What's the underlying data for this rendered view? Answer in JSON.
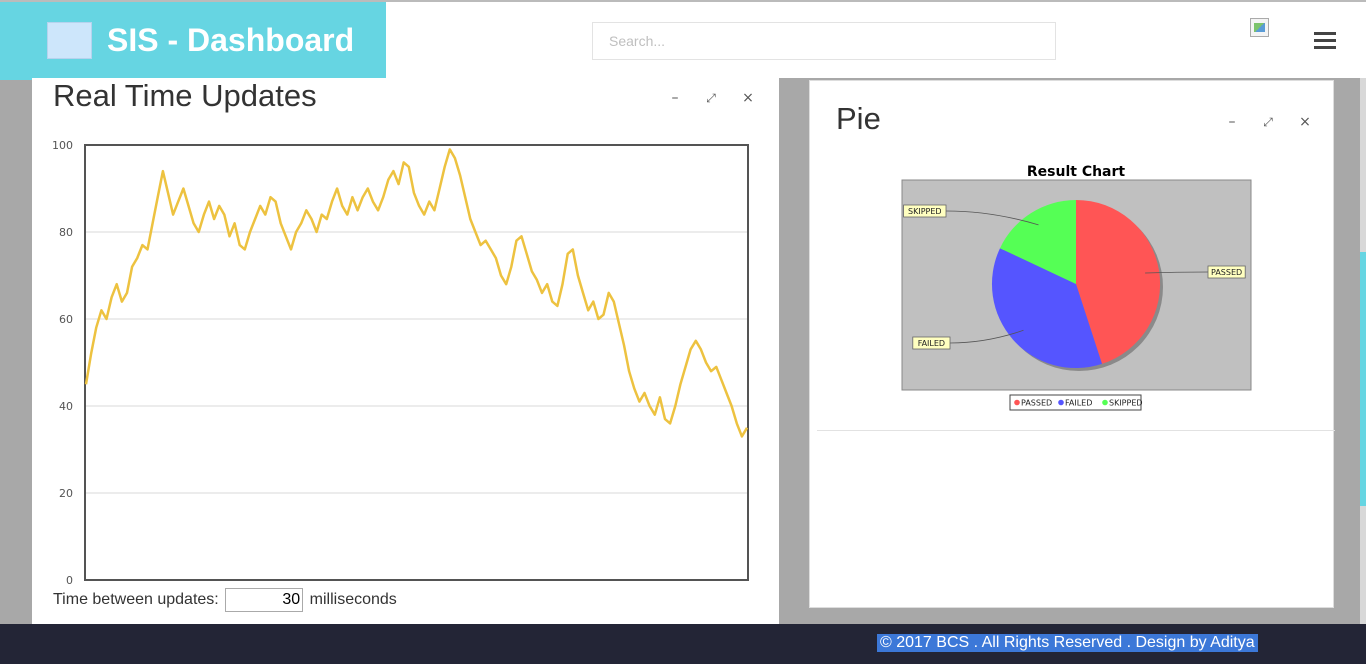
{
  "header": {
    "title": "SIS - Dashboard",
    "search_placeholder": "Search...",
    "brand_color": "#66d5e2",
    "menu_icon": "hamburger-icon"
  },
  "realtime_panel": {
    "title": "Real Time Updates",
    "controls": [
      "minimize-icon",
      "expand-icon",
      "close-icon"
    ],
    "updates_label": "Time between updates:",
    "updates_value": "30",
    "updates_unit": "milliseconds"
  },
  "pie_panel": {
    "title": "Pie",
    "controls": [
      "minimize-icon",
      "expand-icon",
      "close-icon"
    ]
  },
  "footer": {
    "text": "© 2017 BCS . All Rights Reserved . Design by Aditya"
  },
  "chart_data": [
    {
      "type": "line",
      "title": "",
      "xlabel": "",
      "ylabel": "",
      "ylim": [
        0,
        100
      ],
      "yticks": [
        "100",
        "80",
        "60",
        "40",
        "20",
        "0"
      ],
      "grid": true,
      "line_color": "#edc240",
      "series": [
        {
          "values": [
            45,
            52,
            58,
            62,
            60,
            65,
            68,
            64,
            66,
            72,
            74,
            77,
            76,
            82,
            88,
            94,
            89,
            84,
            87,
            90,
            86,
            82,
            80,
            84,
            87,
            83,
            86,
            84,
            79,
            82,
            77,
            76,
            80,
            83,
            86,
            84,
            88,
            87,
            82,
            79,
            76,
            80,
            82,
            85,
            83,
            80,
            84,
            83,
            87,
            90,
            86,
            84,
            88,
            85,
            88,
            90,
            87,
            85,
            88,
            92,
            94,
            91,
            96,
            95,
            89,
            86,
            84,
            87,
            85,
            90,
            95,
            99,
            97,
            93,
            88,
            83,
            80,
            77,
            78,
            76,
            74,
            70,
            68,
            72,
            78,
            79,
            75,
            71,
            69,
            66,
            68,
            64,
            63,
            68,
            75,
            76,
            70,
            66,
            62,
            64,
            60,
            61,
            66,
            64,
            59,
            54,
            48,
            44,
            41,
            43,
            40,
            38,
            42,
            37,
            36,
            40,
            45,
            49,
            53,
            55,
            53,
            50,
            48,
            49,
            46,
            43,
            40,
            36,
            33,
            35
          ]
        }
      ]
    },
    {
      "type": "pie",
      "title": "Result Chart",
      "legend_position": "bottom",
      "background": "#c0c0c0",
      "series": [
        {
          "labels": [
            "PASSED",
            "FAILED",
            "SKIPPED"
          ],
          "values": [
            45,
            37,
            18
          ],
          "colors": [
            "#ff5555",
            "#5555ff",
            "#55ff55"
          ]
        }
      ]
    }
  ]
}
